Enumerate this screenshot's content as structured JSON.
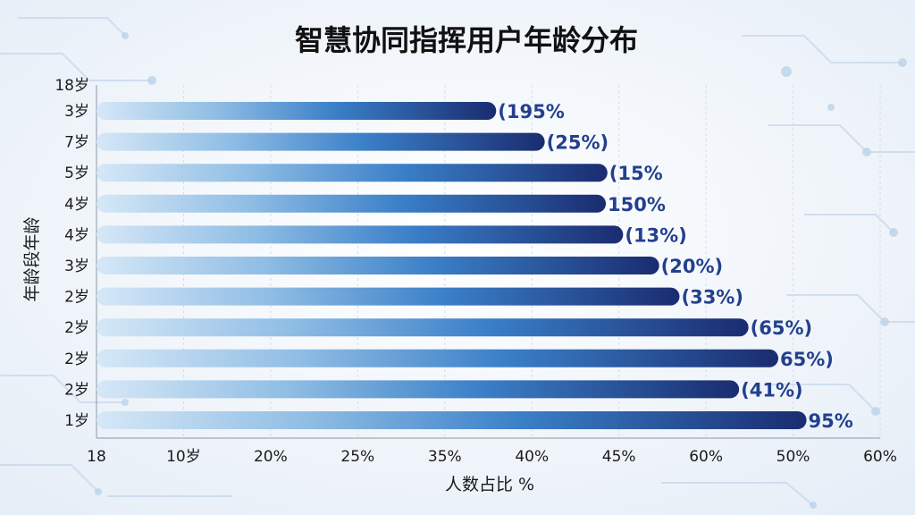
{
  "chart_data": {
    "type": "bar",
    "orientation": "horizontal",
    "title": "智慧协同指挥用户年龄分布",
    "xlabel": "人数占比 %",
    "ylabel": "年龄段年龄",
    "top_tick": "18岁",
    "categories": [
      "3岁",
      "7岁",
      "5岁",
      "4岁",
      "4岁",
      "3岁",
      "2岁",
      "2岁",
      "2岁",
      "2岁",
      "1岁"
    ],
    "values": [
      25.5,
      28.6,
      32.6,
      32.5,
      33.6,
      35.9,
      37.2,
      41.6,
      43.5,
      41.0,
      45.3
    ],
    "value_labels": [
      "(195%",
      "(25%)",
      "(15%",
      "150%",
      "(13%)",
      "(20%)",
      "(33%)",
      "(65%)",
      "65%)",
      "(41%)",
      "95%"
    ],
    "x_tick_labels": [
      "18",
      "10岁",
      "20%",
      "25%",
      "35%",
      "40%",
      "45%",
      "60%",
      "50%",
      "60%"
    ],
    "xlim": [
      0,
      50
    ],
    "grid": "vertical",
    "colors": {
      "bar_start": "#d3e6f6",
      "bar_mid": "#3a7fc8",
      "bar_end": "#1a2c70",
      "label": "#23408e"
    }
  }
}
